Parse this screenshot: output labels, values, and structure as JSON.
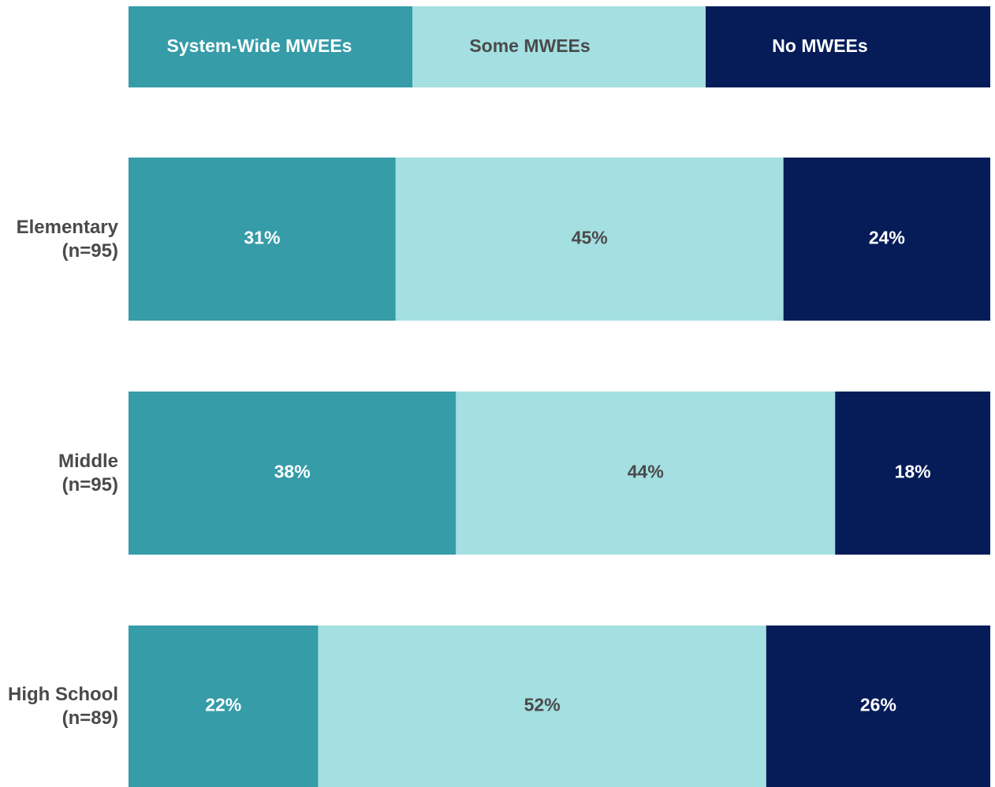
{
  "chart_data": {
    "type": "stacked-bar",
    "orientation": "horizontal",
    "categories": [
      "Elementary (n=95)",
      "Middle (n=95)",
      "High School (n=89)"
    ],
    "series": [
      {
        "name": "System-Wide MWEEs",
        "color": "#359ca8",
        "values": [
          31,
          38,
          22
        ],
        "value_labels": [
          "31%",
          "38%",
          "22%"
        ]
      },
      {
        "name": "Some MWEEs",
        "color": "#a4dfe1",
        "values": [
          45,
          44,
          52
        ],
        "value_labels": [
          "45%",
          "44%",
          "52%"
        ]
      },
      {
        "name": "No MWEEs",
        "color": "#051c59",
        "values": [
          24,
          18,
          26
        ],
        "value_labels": [
          "24%",
          "18%",
          "26%"
        ]
      }
    ],
    "xlim": [
      0,
      100
    ],
    "legend": "top"
  }
}
